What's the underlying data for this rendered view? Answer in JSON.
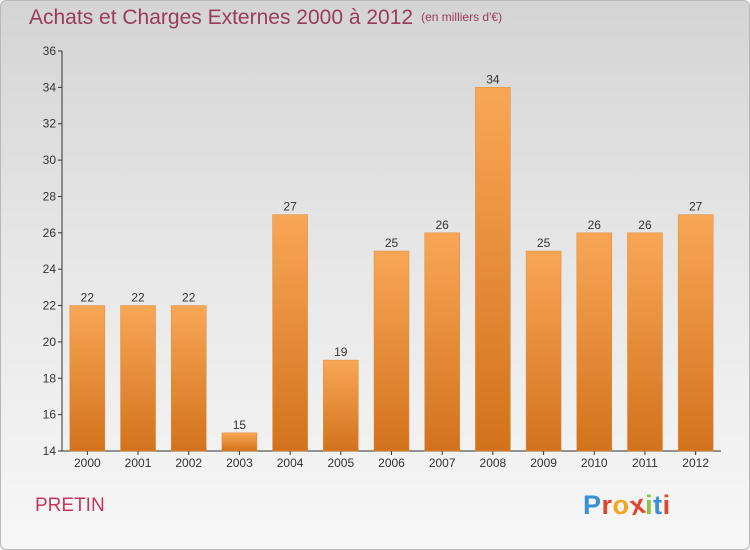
{
  "header": {
    "title": "Achats et Charges Externes 2000 à 2012",
    "subtitle": "(en milliers d'€)"
  },
  "footer": {
    "commune": "PRETIN",
    "logo": "Proxiti"
  },
  "colors": {
    "bar_light": "#f8a756",
    "bar_dark": "#d3721c",
    "title": "#9a3b5c",
    "commune": "#c8345a",
    "logo_letters": [
      "#3a8fd6",
      "#e0452d",
      "#f0a61e",
      "#e0452d",
      "#8bc440",
      "#3a8fd6",
      "#e0452d"
    ]
  },
  "chart_data": {
    "type": "bar",
    "title": "Achats et Charges Externes 2000 à 2012",
    "subtitle": "(en milliers d'€)",
    "categories": [
      "2000",
      "2001",
      "2002",
      "2003",
      "2004",
      "2005",
      "2006",
      "2007",
      "2008",
      "2009",
      "2010",
      "2011",
      "2012"
    ],
    "values": [
      22,
      22,
      22,
      15,
      27,
      19,
      25,
      26,
      34,
      25,
      26,
      26,
      27
    ],
    "ylim": [
      14,
      36
    ],
    "yticks": [
      14,
      16,
      18,
      20,
      22,
      24,
      26,
      28,
      30,
      32,
      34,
      36
    ],
    "grid": false,
    "legend": "none",
    "data_labels": true
  }
}
